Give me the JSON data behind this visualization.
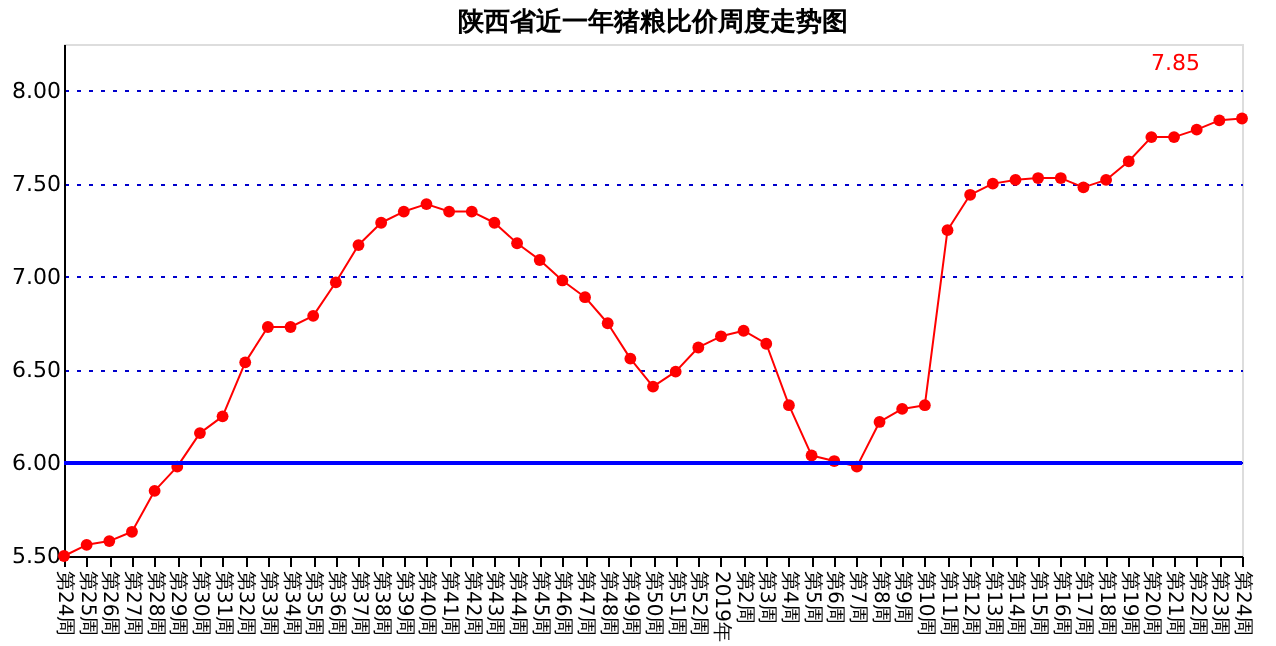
{
  "chart_data": {
    "type": "line",
    "title": "陕西省近一年猪粮比价周度走势图",
    "categories": [
      "第24周",
      "第25周",
      "第26周",
      "第27周",
      "第28周",
      "第29周",
      "第30周",
      "第31周",
      "第32周",
      "第33周",
      "第34周",
      "第35周",
      "第36周",
      "第37周",
      "第38周",
      "第39周",
      "第40周",
      "第41周",
      "第42周",
      "第43周",
      "第44周",
      "第45周",
      "第46周",
      "第47周",
      "第48周",
      "第49周",
      "第50周",
      "第51周",
      "第52周",
      "2019年",
      "第2周",
      "第3周",
      "第4周",
      "第5周",
      "第6周",
      "第7周",
      "第8周",
      "第9周",
      "第10周",
      "第11周",
      "第12周",
      "第13周",
      "第14周",
      "第15周",
      "第16周",
      "第17周",
      "第18周",
      "第19周",
      "第20周",
      "第21周",
      "第22周",
      "第23周",
      "第24周"
    ],
    "series": [
      {
        "color": "#ff0000",
        "values": [
          5.5,
          5.56,
          5.58,
          5.63,
          5.85,
          5.98,
          6.16,
          6.25,
          6.54,
          6.73,
          6.73,
          6.79,
          6.97,
          7.17,
          7.29,
          7.35,
          7.39,
          7.35,
          7.35,
          7.29,
          7.18,
          7.09,
          6.98,
          6.89,
          6.75,
          6.56,
          6.41,
          6.49,
          6.62,
          6.68,
          6.71,
          6.64,
          6.31,
          6.04,
          6.01,
          5.98,
          6.22,
          6.29,
          6.31,
          7.25,
          7.44,
          7.5,
          7.52,
          7.53,
          7.53,
          7.48,
          7.52,
          7.62,
          7.75,
          7.75,
          7.79,
          7.84,
          7.85
        ]
      }
    ],
    "ylim": [
      5.5,
      8.25
    ],
    "yticks": [
      {
        "value": 5.5,
        "label": "5.50"
      },
      {
        "value": 6,
        "label": "6.00"
      },
      {
        "value": 6.5,
        "label": "6.50"
      },
      {
        "value": 7,
        "label": "7.00"
      },
      {
        "value": 7.5,
        "label": "7.50"
      },
      {
        "value": 8,
        "label": "8.00"
      }
    ],
    "ref_lines": [
      {
        "axis": "y",
        "value": 6,
        "color": "#0000ff",
        "line_style": "solid"
      }
    ],
    "annotations": [
      "7.85"
    ],
    "grid": "y",
    "marker": "circle",
    "line_style": "solid"
  }
}
